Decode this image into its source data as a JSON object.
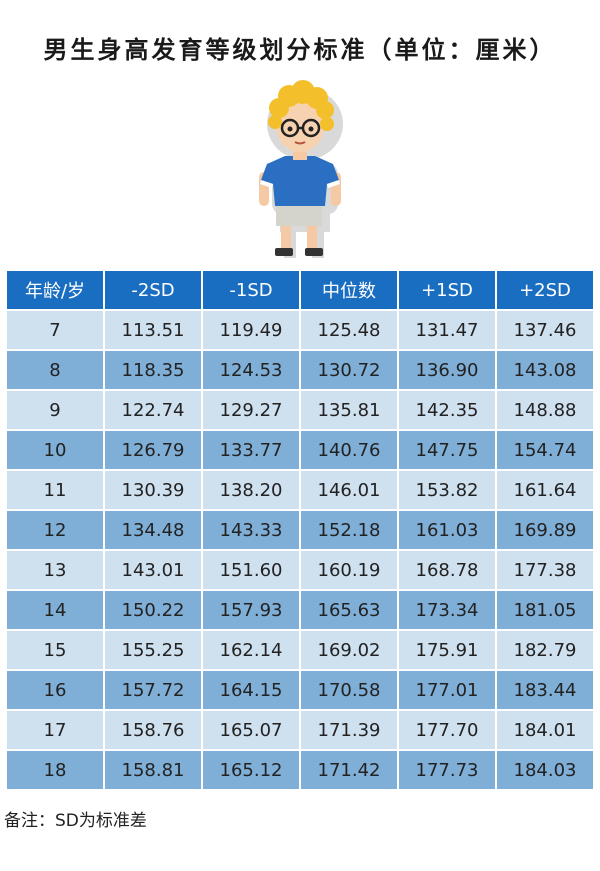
{
  "title": "男生身高发育等级划分标准（单位：厘米）",
  "table": {
    "headers": [
      "年龄/岁",
      "-2SD",
      "-1SD",
      "中位数",
      "+1SD",
      "+2SD"
    ],
    "rows": [
      [
        "7",
        "113.51",
        "119.49",
        "125.48",
        "131.47",
        "137.46"
      ],
      [
        "8",
        "118.35",
        "124.53",
        "130.72",
        "136.90",
        "143.08"
      ],
      [
        "9",
        "122.74",
        "129.27",
        "135.81",
        "142.35",
        "148.88"
      ],
      [
        "10",
        "126.79",
        "133.77",
        "140.76",
        "147.75",
        "154.74"
      ],
      [
        "11",
        "130.39",
        "138.20",
        "146.01",
        "153.82",
        "161.64"
      ],
      [
        "12",
        "134.48",
        "143.33",
        "152.18",
        "161.03",
        "169.89"
      ],
      [
        "13",
        "143.01",
        "151.60",
        "160.19",
        "168.78",
        "177.38"
      ],
      [
        "14",
        "150.22",
        "157.93",
        "165.63",
        "173.34",
        "181.05"
      ],
      [
        "15",
        "155.25",
        "162.14",
        "169.02",
        "175.91",
        "182.79"
      ],
      [
        "16",
        "157.72",
        "164.15",
        "170.58",
        "177.01",
        "183.44"
      ],
      [
        "17",
        "158.76",
        "165.07",
        "171.39",
        "177.70",
        "184.01"
      ],
      [
        "18",
        "158.81",
        "165.12",
        "171.42",
        "177.73",
        "184.03"
      ]
    ]
  },
  "note": "备注：SD为标准差",
  "illustration": "cartoon-boy-icon",
  "colors": {
    "header": "#1a6ec2",
    "row_light": "#cfe0ef",
    "row_dark": "#7faed6"
  }
}
